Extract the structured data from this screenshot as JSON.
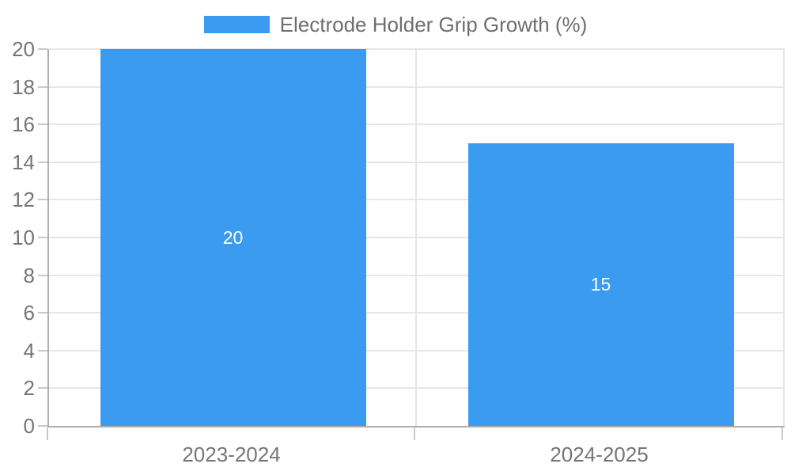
{
  "legend": {
    "label": "Electrode Holder Grip Growth (%)"
  },
  "chart_data": {
    "type": "bar",
    "title": "Electrode Holder Grip Growth (%)",
    "categories": [
      "2023-2024",
      "2024-2025"
    ],
    "series": [
      {
        "name": "Electrode Holder Grip Growth (%)",
        "values": [
          20,
          15
        ]
      }
    ],
    "data_labels": [
      "20",
      "15"
    ],
    "xlabel": "",
    "ylabel": "",
    "ylim": [
      0,
      20
    ],
    "y_ticks": [
      0,
      2,
      4,
      6,
      8,
      10,
      12,
      14,
      16,
      18,
      20
    ],
    "grid": true,
    "legend_position": "top-center",
    "colors": {
      "bar": "#3a9bf0",
      "bar_label": "#ffffff",
      "axis_text": "#757575",
      "legend_text": "#6e6e6e",
      "gridline": "#e6e6e6",
      "axis_line": "#aeaeae",
      "tick": "#c9c9c9",
      "background": "#ffffff"
    }
  }
}
